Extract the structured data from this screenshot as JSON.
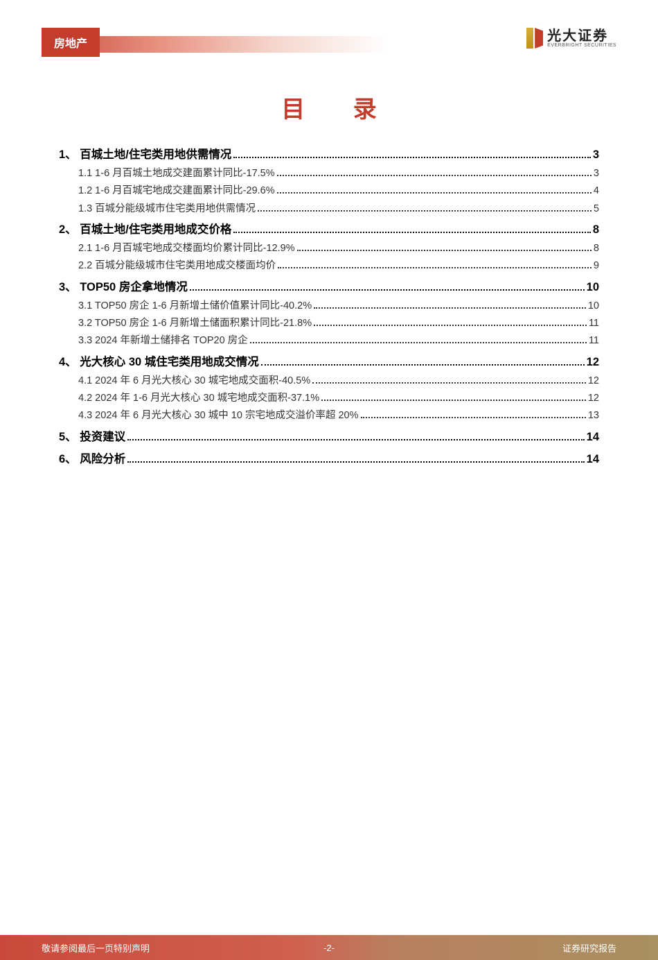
{
  "header": {
    "category": "房地产",
    "logo_cn": "光大证券",
    "logo_en": "EVERBRIGHT SECURITIES"
  },
  "title": "目 录",
  "toc": [
    {
      "level": 1,
      "label": "1、 百城土地/住宅类用地供需情况 ",
      "page": "3"
    },
    {
      "level": 2,
      "label": "1.1 1-6 月百城土地成交建面累计同比-17.5%",
      "page": " 3"
    },
    {
      "level": 2,
      "label": "1.2 1-6 月百城宅地成交建面累计同比-29.6%",
      "page": " 4"
    },
    {
      "level": 2,
      "label": "1.3 百城分能级城市住宅类用地供需情况",
      "page": " 5"
    },
    {
      "level": 1,
      "label": "2、 百城土地/住宅类用地成交价格 ",
      "page": "8"
    },
    {
      "level": 2,
      "label": "2.1 1-6 月百城宅地成交楼面均价累计同比-12.9%",
      "page": " 8"
    },
    {
      "level": 2,
      "label": "2.2 百城分能级城市住宅类用地成交楼面均价",
      "page": " 9"
    },
    {
      "level": 1,
      "label": "3、 TOP50 房企拿地情况 ",
      "page": "10"
    },
    {
      "level": 2,
      "label": "3.1 TOP50 房企 1-6 月新增土储价值累计同比-40.2%",
      "page": " 10"
    },
    {
      "level": 2,
      "label": "3.2 TOP50 房企 1-6 月新增土储面积累计同比-21.8%",
      "page": " 11"
    },
    {
      "level": 2,
      "label": "3.3 2024 年新增土储排名 TOP20 房企",
      "page": " 11"
    },
    {
      "level": 1,
      "label": "4、 光大核心 30 城住宅类用地成交情况 ",
      "page": "12"
    },
    {
      "level": 2,
      "label": "4.1 2024 年 6 月光大核心 30 城宅地成交面积-40.5%",
      "page": " 12"
    },
    {
      "level": 2,
      "label": "4.2 2024 年 1-6 月光大核心 30 城宅地成交面积-37.1% ",
      "page": " 12"
    },
    {
      "level": 2,
      "label": "4.3 2024 年 6 月光大核心 30 城中 10 宗宅地成交溢价率超 20%",
      "page": " 13"
    },
    {
      "level": 1,
      "label": "5、 投资建议",
      "page": "14"
    },
    {
      "level": 1,
      "label": "6、 风险分析",
      "page": "14"
    }
  ],
  "footer": {
    "left": "敬请参阅最后一页特别声明",
    "center": "-2-",
    "right": "证券研究报告"
  },
  "colors": {
    "brand_red": "#c43c2c",
    "gradient_red": "#c94a3b",
    "text": "#333333",
    "white": "#ffffff"
  }
}
